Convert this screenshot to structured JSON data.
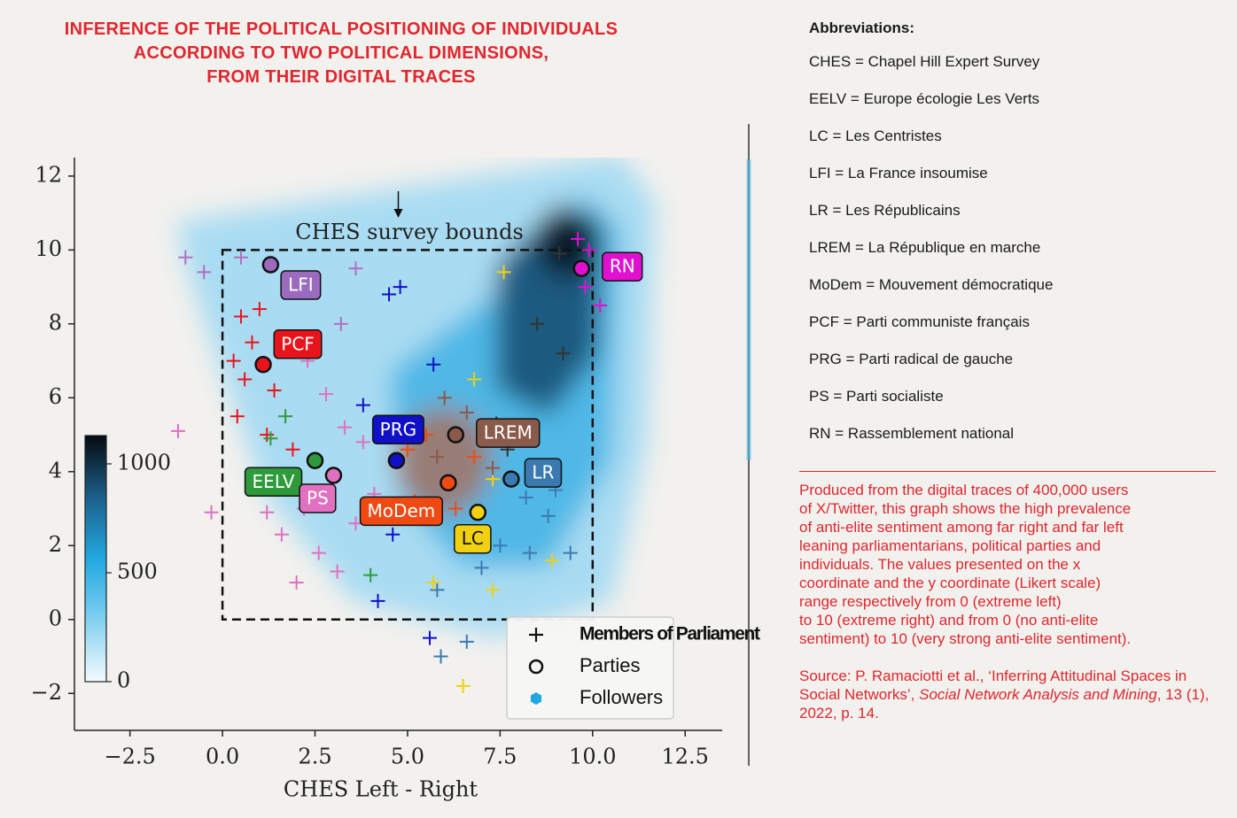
{
  "chart_data": {
    "type": "scatter",
    "title": [
      "INFERENCE OF THE POLITICAL POSITIONING OF INDIVIDUALS",
      "ACCORDING TO TWO POLITICAL DIMENSIONS,",
      "FROM THEIR DIGITAL TRACES"
    ],
    "xlabel": "CHES Left - Right",
    "xlim": [
      -4,
      13.5
    ],
    "ylim": [
      -3,
      12.5
    ],
    "xticks": [
      {
        "value": -2.5,
        "label": "−2.5"
      },
      {
        "value": 0,
        "label": "0.0"
      },
      {
        "value": 2.5,
        "label": "2.5"
      },
      {
        "value": 5,
        "label": "5.0"
      },
      {
        "value": 7.5,
        "label": "7.5"
      },
      {
        "value": 10,
        "label": "10.0"
      },
      {
        "value": 12.5,
        "label": "12.5"
      }
    ],
    "yticks": [
      {
        "value": -2,
        "label": "−2"
      },
      0,
      2,
      4,
      6,
      8,
      10,
      12
    ],
    "colorbar": {
      "lim": [
        0,
        1130
      ],
      "ticks": [
        0,
        500,
        1000
      ]
    },
    "annotation": "CHES survey bounds",
    "survey_bounds": [
      0,
      10
    ],
    "legend": [
      "Members of Parliament",
      "Parties",
      "Followers"
    ],
    "parties": {
      "names": [
        "LFI",
        "PCF",
        "EELV",
        "PS",
        "PRG",
        "LREM",
        "MoDem",
        "LC",
        "LR",
        "RN"
      ],
      "x": [
        1.3,
        1.1,
        2.5,
        3.0,
        4.7,
        6.3,
        6.1,
        6.9,
        7.8,
        9.7
      ],
      "y": [
        9.6,
        6.9,
        4.3,
        3.9,
        4.3,
        5.0,
        3.7,
        2.9,
        3.8,
        9.5
      ],
      "colors": [
        "#9b6bbf",
        "#e8141c",
        "#2e9a3c",
        "#e070c0",
        "#1010c8",
        "#8a5a4a",
        "#f04a14",
        "#f0d010",
        "#3a7ab0",
        "#e010d0"
      ]
    },
    "members": {
      "x": [
        0.5,
        0.8,
        1.0,
        0.3,
        0.6,
        1.4,
        0.4,
        1.2,
        1.9,
        0.9,
        2.3,
        2.8,
        3.3,
        2.2,
        1.6,
        2.6,
        3.1,
        2.0,
        3.6,
        1.2,
        3.8,
        -1.2,
        -0.3,
        4.1,
        -1.0,
        -0.5,
        0.5,
        2.0,
        3.2,
        3.6,
        1.7,
        1.3,
        2.4,
        4.0,
        4.5,
        4.8,
        5.7,
        3.8,
        4.6,
        4.2,
        5.6,
        7.5,
        8.2,
        8.8,
        9.0,
        5.8,
        7.0,
        8.3,
        9.4,
        5.9,
        6.6,
        7.6,
        5.7,
        7.3,
        6.5,
        8.9,
        6.8,
        7.3,
        9.1,
        8.5,
        9.2,
        7.4,
        7.7,
        9.6,
        9.9,
        10.2,
        9.8,
        6.0,
        5.8,
        7.3,
        6.6,
        5.5,
        6.8,
        5.2,
        6.3,
        5.0
      ],
      "y": [
        8.2,
        7.5,
        8.4,
        7.0,
        6.5,
        6.2,
        5.5,
        5.0,
        4.6,
        3.8,
        7.0,
        6.1,
        5.2,
        3.0,
        2.3,
        1.8,
        1.3,
        1.0,
        2.6,
        2.9,
        4.8,
        5.1,
        2.9,
        3.4,
        9.8,
        9.4,
        9.8,
        9.0,
        8.0,
        9.5,
        5.5,
        4.9,
        3.3,
        1.2,
        8.8,
        9.0,
        6.9,
        5.8,
        2.3,
        0.5,
        -0.5,
        2.0,
        3.3,
        2.8,
        3.5,
        0.8,
        1.4,
        1.8,
        1.8,
        -1.0,
        -0.6,
        9.4,
        1.0,
        0.8,
        -1.8,
        1.6,
        6.5,
        3.8,
        9.9,
        8.0,
        7.2,
        5.3,
        4.6,
        10.3,
        10.0,
        8.5,
        9.0,
        6.0,
        4.4,
        4.1,
        5.6,
        5.0,
        4.4,
        3.2,
        3.0,
        4.6
      ],
      "colors": [
        "#e8141c",
        "#e8141c",
        "#e8141c",
        "#e8141c",
        "#e8141c",
        "#e8141c",
        "#e8141c",
        "#e8141c",
        "#e8141c",
        "#e8141c",
        "#e070c0",
        "#e070c0",
        "#e070c0",
        "#e070c0",
        "#e070c0",
        "#e070c0",
        "#e070c0",
        "#e070c0",
        "#e070c0",
        "#e070c0",
        "#e070c0",
        "#e070c0",
        "#e070c0",
        "#e070c0",
        "#b070c0",
        "#b070c0",
        "#b070c0",
        "#b070c0",
        "#b070c0",
        "#b070c0",
        "#2e9a3c",
        "#2e9a3c",
        "#2e9a3c",
        "#2e9a3c",
        "#1010c8",
        "#1010c8",
        "#1010c8",
        "#1010c8",
        "#1010c8",
        "#1010c8",
        "#1010c8",
        "#3a7ab0",
        "#3a7ab0",
        "#3a7ab0",
        "#3a7ab0",
        "#3a7ab0",
        "#3a7ab0",
        "#3a7ab0",
        "#3a7ab0",
        "#3a7ab0",
        "#3a7ab0",
        "#f0d010",
        "#f0d010",
        "#f0d010",
        "#f0d010",
        "#f0d010",
        "#f0d010",
        "#f0d010",
        "#333333",
        "#333333",
        "#333333",
        "#333333",
        "#333333",
        "#e010d0",
        "#e010d0",
        "#e010d0",
        "#e010d0",
        "#8a5a4a",
        "#8a5a4a",
        "#8a5a4a",
        "#8a5a4a",
        "#f04a14",
        "#f04a14",
        "#f04a14",
        "#f04a14",
        "#f04a14"
      ]
    }
  },
  "abbreviations": {
    "title": "Abbreviations:",
    "items": [
      "CHES = Chapel Hill Expert Survey",
      "EELV = Europe écologie Les Verts",
      "LC = Les Centristes",
      "LFI = La France insoumise",
      "LR = Les Républicains",
      "LREM = La République en marche",
      "MoDem = Mouvement démocratique",
      "PCF = Parti communiste français",
      "PRG = Parti radical de gauche",
      "PS = Parti socialiste",
      "RN = Rassemblement national"
    ]
  },
  "description": [
    "Produced from the digital traces of 400,000 users",
    "of X/Twitter, this graph shows the high prevalence",
    "of anti-elite sentiment among far right and far left",
    "leaning parliamentarians, political parties and",
    "individuals. The values presented on the x",
    "coordinate and the y coordinate (Likert scale)",
    "range respectively from 0 (extreme left)",
    "to 10 (extreme right) and from 0 (no anti-elite",
    "sentiment) to 10 (very strong anti-elite sentiment)."
  ],
  "source": [
    "Source: P. Ramaciotti et al., ‘Inferring Attitudinal Spaces in Social Networks’, ",
    "Social Network Analysis and Mining",
    ", 13 (1), 2022, p. 14."
  ]
}
